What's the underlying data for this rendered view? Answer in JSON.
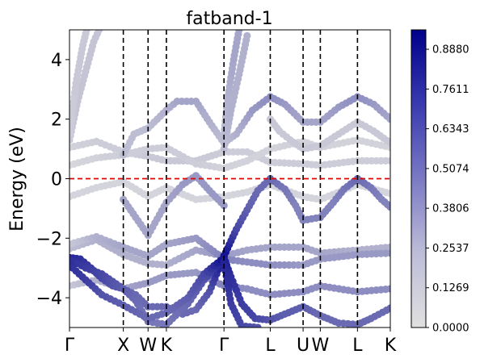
{
  "chart_data": {
    "type": "scatter",
    "title": "fatband-1",
    "ylabel": "Energy (eV)",
    "xlabel": "",
    "ylim": [
      -5,
      5
    ],
    "y_ticks": [
      {
        "v": 4,
        "label": "4"
      },
      {
        "v": 2,
        "label": "2"
      },
      {
        "v": 0,
        "label": "0"
      },
      {
        "v": -2,
        "label": "−2"
      },
      {
        "v": -4,
        "label": "−4"
      }
    ],
    "x_ticks": [
      {
        "x": 0.0,
        "label": "Γ"
      },
      {
        "x": 1.0,
        "label": "X"
      },
      {
        "x": 1.46,
        "label": "W"
      },
      {
        "x": 1.8,
        "label": "K"
      },
      {
        "x": 2.87,
        "label": "Γ"
      },
      {
        "x": 3.73,
        "label": "L"
      },
      {
        "x": 4.34,
        "label": "U"
      },
      {
        "x": 4.66,
        "label": "W"
      },
      {
        "x": 5.35,
        "label": "L"
      },
      {
        "x": 5.96,
        "label": "K"
      }
    ],
    "xlim": [
      0,
      5.96
    ],
    "segment_boundaries": [
      1.0,
      1.46,
      1.8,
      2.87,
      3.73,
      4.34,
      4.66,
      5.35
    ],
    "fermi_level": 0,
    "colorbar": {
      "min": 0.0,
      "max": 0.95,
      "ticks": [
        {
          "v": 0.0,
          "label": "0.0000"
        },
        {
          "v": 0.1269,
          "label": "0.1269"
        },
        {
          "v": 0.2537,
          "label": "0.2537"
        },
        {
          "v": 0.3806,
          "label": "0.3806"
        },
        {
          "v": 0.5074,
          "label": "0.5074"
        },
        {
          "v": 0.6343,
          "label": "0.6343"
        },
        {
          "v": 0.7611,
          "label": "0.7611"
        },
        {
          "v": 0.888,
          "label": "0.8880"
        }
      ],
      "colors": [
        "#e0e0e0",
        "#00008b"
      ]
    },
    "series": [
      {
        "points": [
          [
            0,
            -0.6,
            0.05
          ],
          [
            0.5,
            -0.3,
            0.05
          ],
          [
            1.0,
            -0.1,
            0.05
          ],
          [
            1.46,
            -0.6,
            0.05
          ],
          [
            1.8,
            -0.3,
            0.05
          ],
          [
            2.35,
            -0.7,
            0.05
          ],
          [
            2.87,
            -0.6,
            0.05
          ],
          [
            3.3,
            -0.45,
            0.05
          ],
          [
            3.73,
            -0.2,
            0.05
          ],
          [
            4.34,
            -0.6,
            0.05
          ],
          [
            4.66,
            -0.7,
            0.05
          ],
          [
            5.35,
            -0.2,
            0.05
          ],
          [
            5.96,
            -0.5,
            0.05
          ]
        ]
      },
      {
        "points": [
          [
            0,
            1.05,
            0.06
          ],
          [
            0.5,
            1.25,
            0.08
          ],
          [
            1.0,
            0.9,
            0.08
          ],
          [
            1.46,
            0.75,
            0.1
          ],
          [
            1.8,
            0.6,
            0.1
          ],
          [
            2.35,
            0.6,
            0.1
          ],
          [
            2.87,
            0.9,
            0.08
          ],
          [
            3.3,
            0.9,
            0.08
          ],
          [
            3.73,
            0.55,
            0.08
          ],
          [
            4.34,
            0.5,
            0.08
          ],
          [
            4.66,
            0.45,
            0.08
          ],
          [
            5.35,
            0.6,
            0.08
          ],
          [
            5.96,
            0.6,
            0.08
          ]
        ]
      },
      {
        "points": [
          [
            0,
            0.45,
            0.04
          ],
          [
            0.5,
            0.7,
            0.06
          ],
          [
            1.0,
            0.8,
            0.08
          ],
          [
            1.46,
            1.0,
            0.08
          ],
          [
            1.8,
            1.05,
            0.08
          ],
          [
            2.35,
            0.5,
            0.08
          ],
          [
            2.87,
            0.35,
            0.06
          ],
          [
            3.3,
            0.6,
            0.06
          ],
          [
            3.73,
            1.0,
            0.06
          ],
          [
            4.34,
            1.25,
            0.06
          ],
          [
            4.66,
            1.05,
            0.06
          ],
          [
            5.35,
            1.3,
            0.06
          ],
          [
            5.96,
            1.05,
            0.06
          ]
        ]
      },
      {
        "points": [
          [
            0,
            -2.35,
            0.15
          ],
          [
            0.5,
            -2.05,
            0.2
          ],
          [
            1.0,
            -2.55,
            0.2
          ],
          [
            1.46,
            -2.85,
            0.2
          ],
          [
            1.8,
            -2.9,
            0.2
          ],
          [
            2.35,
            -2.4,
            0.25
          ],
          [
            2.87,
            -2.6,
            0.3
          ],
          [
            3.3,
            -2.4,
            0.25
          ],
          [
            3.73,
            -2.3,
            0.25
          ],
          [
            4.34,
            -2.3,
            0.25
          ],
          [
            4.66,
            -2.5,
            0.25
          ],
          [
            5.35,
            -2.4,
            0.2
          ],
          [
            5.96,
            -2.3,
            0.2
          ]
        ]
      },
      {
        "points": [
          [
            0,
            -2.2,
            0.1
          ],
          [
            0.5,
            -1.95,
            0.2
          ],
          [
            1.0,
            -2.3,
            0.25
          ],
          [
            1.46,
            -2.6,
            0.25
          ],
          [
            1.8,
            -2.2,
            0.25
          ],
          [
            2.35,
            -2.0,
            0.3
          ],
          [
            2.87,
            -2.7,
            0.4
          ],
          [
            3.3,
            -2.8,
            0.35
          ],
          [
            3.73,
            -2.9,
            0.35
          ],
          [
            4.34,
            -2.9,
            0.3
          ],
          [
            4.66,
            -2.7,
            0.3
          ],
          [
            5.35,
            -2.55,
            0.3
          ],
          [
            5.96,
            -2.5,
            0.3
          ]
        ]
      },
      {
        "points": [
          [
            0,
            -3.6,
            0.1
          ],
          [
            0.5,
            -3.4,
            0.2
          ],
          [
            1.0,
            -3.7,
            0.25
          ],
          [
            1.46,
            -3.5,
            0.3
          ],
          [
            1.8,
            -3.25,
            0.3
          ],
          [
            2.35,
            -3.15,
            0.3
          ],
          [
            2.87,
            -3.6,
            0.4
          ],
          [
            3.3,
            -3.7,
            0.35
          ],
          [
            3.73,
            -3.9,
            0.35
          ],
          [
            4.34,
            -3.8,
            0.35
          ],
          [
            4.66,
            -3.6,
            0.35
          ],
          [
            5.35,
            -3.8,
            0.35
          ],
          [
            5.96,
            -3.7,
            0.35
          ]
        ]
      },
      {
        "points": [
          [
            0,
            -2.65,
            0.8
          ],
          [
            0.2,
            -2.7,
            0.75
          ],
          [
            0.4,
            -3.0,
            0.7
          ],
          [
            0.6,
            -3.35,
            0.65
          ],
          [
            0.8,
            -3.6,
            0.6
          ],
          [
            1.0,
            -3.7,
            0.55
          ],
          [
            1.23,
            -3.9,
            0.5
          ],
          [
            1.46,
            -4.3,
            0.5
          ],
          [
            1.8,
            -4.3,
            0.5
          ],
          [
            2.1,
            -4.55,
            0.5
          ],
          [
            2.35,
            -4.4,
            0.5
          ],
          [
            2.6,
            -3.8,
            0.6
          ],
          [
            2.87,
            -2.6,
            0.9
          ]
        ]
      },
      {
        "points": [
          [
            0,
            -2.7,
            0.75
          ],
          [
            0.3,
            -3.0,
            0.7
          ],
          [
            0.6,
            -3.2,
            0.65
          ],
          [
            1.0,
            -3.7,
            0.55
          ],
          [
            1.23,
            -4.1,
            0.5
          ],
          [
            1.46,
            -4.8,
            0.45
          ],
          [
            1.8,
            -4.9,
            0.45
          ],
          [
            2.2,
            -4.2,
            0.5
          ],
          [
            2.5,
            -3.4,
            0.6
          ],
          [
            2.87,
            -2.7,
            0.85
          ]
        ]
      },
      {
        "points": [
          [
            0,
            -2.9,
            0.75
          ],
          [
            0.3,
            -3.4,
            0.7
          ],
          [
            0.6,
            -3.9,
            0.6
          ],
          [
            1.0,
            -4.25,
            0.55
          ],
          [
            1.46,
            -4.7,
            0.5
          ],
          [
            1.8,
            -4.5,
            0.5
          ],
          [
            2.2,
            -4.0,
            0.55
          ],
          [
            2.5,
            -3.2,
            0.65
          ],
          [
            2.87,
            -2.65,
            0.9
          ]
        ]
      },
      {
        "points": [
          [
            2.87,
            -2.6,
            0.9
          ],
          [
            3.1,
            -1.7,
            0.65
          ],
          [
            3.3,
            -1.05,
            0.55
          ],
          [
            3.5,
            -0.4,
            0.5
          ],
          [
            3.73,
            0.0,
            0.5
          ],
          [
            4.0,
            -0.35,
            0.45
          ],
          [
            4.2,
            -0.9,
            0.4
          ],
          [
            4.34,
            -1.4,
            0.4
          ],
          [
            4.66,
            -1.3,
            0.4
          ],
          [
            4.9,
            -0.8,
            0.4
          ],
          [
            5.1,
            -0.35,
            0.45
          ],
          [
            5.35,
            0.0,
            0.5
          ],
          [
            5.6,
            -0.3,
            0.45
          ],
          [
            5.8,
            -0.7,
            0.4
          ],
          [
            5.96,
            -0.95,
            0.4
          ]
        ]
      },
      {
        "points": [
          [
            2.87,
            -2.65,
            0.85
          ],
          [
            3.0,
            -3.3,
            0.75
          ],
          [
            3.2,
            -4.2,
            0.7
          ],
          [
            3.45,
            -4.7,
            0.65
          ],
          [
            3.73,
            -4.75,
            0.6
          ],
          [
            4.0,
            -4.55,
            0.55
          ],
          [
            4.34,
            -4.3,
            0.55
          ],
          [
            4.66,
            -4.6,
            0.5
          ],
          [
            5.0,
            -4.85,
            0.5
          ],
          [
            5.35,
            -4.9,
            0.5
          ],
          [
            5.6,
            -4.7,
            0.5
          ],
          [
            5.96,
            -4.35,
            0.5
          ]
        ]
      },
      {
        "points": [
          [
            2.87,
            -2.8,
            0.8
          ],
          [
            3.0,
            -4.2,
            0.7
          ],
          [
            3.2,
            -4.95,
            0.65
          ],
          [
            3.5,
            -5.0,
            0.6
          ]
        ]
      },
      {
        "points": [
          [
            0,
            1.3,
            0.1
          ],
          [
            0.15,
            2.6,
            0.12
          ],
          [
            0.3,
            3.6,
            0.12
          ],
          [
            0.45,
            4.6,
            0.12
          ],
          [
            0.55,
            5.0,
            0.12
          ]
        ]
      },
      {
        "points": [
          [
            0,
            1.5,
            0.08
          ],
          [
            0.12,
            3.2,
            0.1
          ],
          [
            0.25,
            4.5,
            0.1
          ],
          [
            0.32,
            5.0,
            0.1
          ]
        ]
      },
      {
        "points": [
          [
            1.0,
            0.8,
            0.15
          ],
          [
            1.2,
            1.5,
            0.15
          ],
          [
            1.46,
            1.7,
            0.15
          ],
          [
            1.8,
            2.3,
            0.2
          ],
          [
            2.0,
            2.6,
            0.25
          ],
          [
            2.35,
            2.6,
            0.25
          ],
          [
            2.6,
            1.9,
            0.2
          ],
          [
            2.87,
            1.2,
            0.15
          ],
          [
            3.1,
            1.5,
            0.2
          ],
          [
            3.4,
            2.3,
            0.3
          ],
          [
            3.73,
            2.75,
            0.35
          ],
          [
            4.0,
            2.5,
            0.3
          ],
          [
            4.34,
            1.9,
            0.25
          ],
          [
            4.66,
            1.9,
            0.25
          ],
          [
            5.0,
            2.4,
            0.3
          ],
          [
            5.35,
            2.75,
            0.35
          ],
          [
            5.65,
            2.5,
            0.3
          ],
          [
            5.96,
            2.0,
            0.25
          ]
        ]
      },
      {
        "points": [
          [
            1.0,
            -0.7,
            0.25
          ],
          [
            1.23,
            -1.3,
            0.25
          ],
          [
            1.46,
            -1.9,
            0.25
          ],
          [
            1.8,
            -0.8,
            0.25
          ],
          [
            2.1,
            -0.2,
            0.3
          ],
          [
            2.35,
            0.1,
            0.3
          ],
          [
            2.6,
            -0.4,
            0.3
          ],
          [
            2.87,
            -0.9,
            0.3
          ]
        ]
      },
      {
        "points": [
          [
            2.87,
            1.5,
            0.15
          ],
          [
            2.95,
            2.8,
            0.2
          ],
          [
            3.05,
            4.0,
            0.25
          ],
          [
            3.15,
            5.0,
            0.25
          ]
        ]
      },
      {
        "points": [
          [
            2.87,
            1.0,
            0.15
          ],
          [
            3.0,
            2.3,
            0.2
          ],
          [
            3.15,
            3.5,
            0.2
          ],
          [
            3.3,
            4.8,
            0.2
          ]
        ]
      },
      {
        "points": [
          [
            3.73,
            2.0,
            0.1
          ],
          [
            3.9,
            1.6,
            0.1
          ],
          [
            4.1,
            1.3,
            0.1
          ],
          [
            4.34,
            1.0,
            0.1
          ],
          [
            4.66,
            1.1,
            0.1
          ],
          [
            5.0,
            1.5,
            0.1
          ],
          [
            5.35,
            1.9,
            0.1
          ],
          [
            5.65,
            1.6,
            0.1
          ],
          [
            5.96,
            1.2,
            0.1
          ]
        ]
      }
    ]
  }
}
